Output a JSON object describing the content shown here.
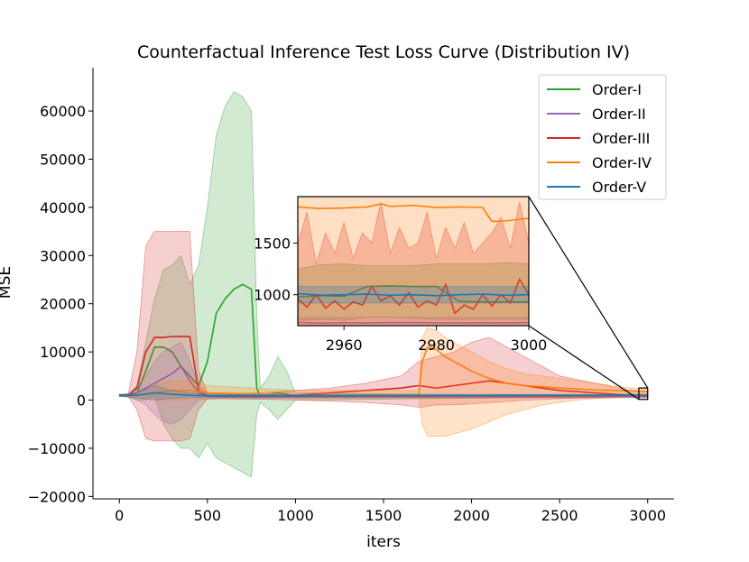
{
  "chart_data": {
    "type": "line",
    "title": "Counterfactual Inference Test Loss Curve (Distribution IV)",
    "xlabel": "iters",
    "ylabel": "MSE",
    "xlim": [
      -150,
      3150
    ],
    "ylim": [
      -20500,
      69000
    ],
    "xticks": [
      0,
      500,
      1000,
      1500,
      2000,
      2500,
      3000
    ],
    "xtick_labels": [
      "0",
      "500",
      "1000",
      "1500",
      "2000",
      "2500",
      "3000"
    ],
    "yticks": [
      -20000,
      -10000,
      0,
      10000,
      20000,
      30000,
      40000,
      50000,
      60000
    ],
    "ytick_labels": [
      "−20000",
      "−10000",
      "0",
      "10000",
      "20000",
      "30000",
      "40000",
      "50000",
      "60000"
    ],
    "grid": false,
    "legend_position": "top-right",
    "series": [
      {
        "name": "Order-I",
        "color": "#2ca02c",
        "x": [
          0,
          50,
          100,
          150,
          200,
          250,
          300,
          350,
          400,
          450,
          500,
          550,
          600,
          650,
          700,
          750,
          780,
          800,
          850,
          900,
          950,
          1000,
          1500,
          2000,
          2500,
          3000
        ],
        "mean": [
          1000,
          900,
          1500,
          6000,
          11000,
          11000,
          10000,
          7000,
          5000,
          3000,
          8000,
          18000,
          21000,
          23000,
          24000,
          23000,
          2500,
          800,
          1200,
          1500,
          1300,
          600,
          700,
          800,
          900,
          950
        ],
        "upper": [
          1200,
          1100,
          3000,
          12000,
          21000,
          27000,
          28000,
          30000,
          24000,
          28000,
          40000,
          55000,
          61000,
          64000,
          63000,
          60000,
          18000,
          2500,
          5000,
          9000,
          6000,
          1500,
          1300,
          1200,
          1200,
          1250
        ],
        "lower": [
          800,
          700,
          0,
          0,
          1000,
          -5000,
          -8000,
          -10000,
          -10000,
          -12000,
          -9000,
          -12000,
          -13000,
          -14000,
          -15000,
          -16000,
          -3000,
          -500,
          -2000,
          -4000,
          -2000,
          0,
          200,
          400,
          600,
          700
        ]
      },
      {
        "name": "Order-II",
        "color": "#9467bd",
        "x": [
          0,
          50,
          100,
          150,
          200,
          250,
          300,
          350,
          400,
          450,
          500,
          600,
          700,
          800,
          1000,
          1500,
          2000,
          2500,
          3000
        ],
        "mean": [
          1000,
          900,
          1500,
          2500,
          3500,
          4500,
          5500,
          7000,
          4000,
          1500,
          800,
          700,
          700,
          650,
          650,
          650,
          650,
          650,
          700
        ],
        "upper": [
          1200,
          1100,
          3000,
          5000,
          8000,
          10000,
          11000,
          12000,
          8000,
          3000,
          1500,
          1200,
          1100,
          1000,
          950,
          900,
          900,
          900,
          900
        ],
        "lower": [
          800,
          700,
          0,
          -1000,
          -3000,
          -4500,
          -5000,
          -4000,
          -2000,
          0,
          200,
          300,
          300,
          350,
          400,
          450,
          450,
          450,
          500
        ]
      },
      {
        "name": "Order-III",
        "color": "#d62728",
        "x": [
          0,
          50,
          100,
          150,
          200,
          250,
          300,
          350,
          400,
          450,
          500,
          600,
          800,
          1000,
          1200,
          1400,
          1600,
          1700,
          1800,
          1900,
          2000,
          2100,
          2200,
          2300,
          2400,
          2500,
          2700,
          2900,
          3000
        ],
        "mean": [
          1000,
          1000,
          2500,
          10000,
          13000,
          13000,
          13200,
          13200,
          13200,
          2000,
          900,
          800,
          800,
          1000,
          1500,
          2000,
          2500,
          3000,
          2500,
          3000,
          3500,
          4000,
          3500,
          3000,
          2500,
          2000,
          1500,
          1000,
          950
        ],
        "upper": [
          1200,
          1200,
          10000,
          32000,
          35000,
          35000,
          35000,
          35000,
          35000,
          6000,
          1500,
          1300,
          1500,
          2000,
          2500,
          3500,
          5000,
          8000,
          9000,
          10000,
          12000,
          13000,
          11000,
          9000,
          7000,
          5000,
          3500,
          2000,
          1900
        ],
        "lower": [
          800,
          800,
          -2000,
          -8000,
          -8500,
          -8500,
          -8500,
          -8500,
          -8000,
          -2000,
          300,
          300,
          200,
          0,
          -200,
          -500,
          -1000,
          -1500,
          -1000,
          -1000,
          -800,
          -500,
          -300,
          0,
          100,
          300,
          500,
          700,
          700
        ]
      },
      {
        "name": "Order-IV",
        "color": "#ff7f0e",
        "x": [
          0,
          100,
          200,
          300,
          400,
          500,
          1000,
          1500,
          1700,
          1720,
          1750,
          1800,
          1850,
          1900,
          1950,
          2000,
          2100,
          2200,
          2300,
          2400,
          2500,
          2600,
          2700,
          2800,
          2900,
          3000
        ],
        "mean": [
          1000,
          1000,
          1500,
          2000,
          2000,
          1500,
          1000,
          1000,
          1000,
          8000,
          11000,
          10500,
          9000,
          8000,
          7000,
          6000,
          4500,
          3500,
          3000,
          2800,
          2500,
          2300,
          2100,
          2000,
          1900,
          1800
        ],
        "upper": [
          1200,
          1500,
          3000,
          4000,
          4000,
          3000,
          2000,
          2000,
          2000,
          13000,
          15000,
          14500,
          13000,
          12000,
          11000,
          10000,
          8000,
          6500,
          5500,
          5000,
          4500,
          4000,
          3500,
          3000,
          2500,
          2300
        ],
        "lower": [
          800,
          500,
          0,
          0,
          0,
          500,
          500,
          500,
          500,
          -5000,
          -7500,
          -7500,
          -7500,
          -7000,
          -6500,
          -6000,
          -4500,
          -3000,
          -2000,
          -1000,
          -500,
          0,
          300,
          500,
          700,
          800
        ]
      },
      {
        "name": "Order-V",
        "color": "#1f77b4",
        "x": [
          0,
          100,
          200,
          300,
          400,
          500,
          1000,
          1500,
          2000,
          2500,
          3000
        ],
        "mean": [
          1000,
          1000,
          1500,
          1200,
          1000,
          900,
          900,
          950,
          950,
          980,
          1000
        ],
        "upper": [
          1200,
          1500,
          3000,
          2000,
          1500,
          1200,
          1100,
          1100,
          1100,
          1100,
          1100
        ],
        "lower": [
          800,
          500,
          0,
          400,
          500,
          600,
          700,
          800,
          850,
          870,
          900
        ]
      }
    ],
    "inset": {
      "xlim": [
        2950,
        3000
      ],
      "ylim": [
        700,
        1950
      ],
      "xticks": [
        2960,
        2980,
        3000
      ],
      "xtick_labels": [
        "2960",
        "2980",
        "3000"
      ],
      "yticks": [
        1000,
        1500
      ],
      "ytick_labels": [
        "1000",
        "1500"
      ],
      "series": [
        {
          "name": "Order-I",
          "color": "#2ca02c",
          "x": [
            2950,
            2955,
            2960,
            2965,
            2970,
            2975,
            2980,
            2985,
            2990,
            2995,
            3000
          ],
          "mean": [
            980,
            990,
            985,
            1080,
            1085,
            1080,
            1080,
            935,
            930,
            930,
            930
          ],
          "upper": [
            1250,
            1290,
            1300,
            1280,
            1280,
            1280,
            1300,
            1300,
            1300,
            1310,
            1300
          ],
          "lower": [
            750,
            760,
            750,
            780,
            780,
            770,
            760,
            760,
            760,
            760,
            760
          ]
        },
        {
          "name": "Order-II",
          "color": "#9467bd",
          "x": [
            2950,
            2955,
            2960,
            2965,
            2970,
            2975,
            2980,
            2985,
            2990,
            2995,
            3000
          ],
          "mean": [
            730,
            725,
            728,
            726,
            730,
            729,
            727,
            726,
            728,
            727,
            729
          ],
          "upper": [
            780,
            780,
            780,
            780,
            780,
            780,
            780,
            780,
            780,
            780,
            780
          ],
          "lower": [
            700,
            700,
            700,
            700,
            700,
            700,
            700,
            700,
            700,
            700,
            700
          ]
        },
        {
          "name": "Order-III",
          "color": "#d62728",
          "x": [
            2950,
            2952,
            2954,
            2956,
            2958,
            2960,
            2962,
            2964,
            2966,
            2968,
            2970,
            2972,
            2974,
            2976,
            2978,
            2980,
            2982,
            2984,
            2986,
            2988,
            2990,
            2992,
            2994,
            2996,
            2998,
            3000
          ],
          "mean": [
            960,
            880,
            1000,
            870,
            940,
            860,
            930,
            900,
            1080,
            940,
            990,
            900,
            1020,
            880,
            940,
            900,
            1100,
            820,
            900,
            860,
            1000,
            890,
            1000,
            920,
            1150,
            1000
          ],
          "upper": [
            1500,
            1800,
            1300,
            1600,
            1400,
            1700,
            1350,
            1600,
            1500,
            1900,
            1400,
            1650,
            1450,
            1500,
            1800,
            1350,
            1650,
            1450,
            1700,
            1400,
            1500,
            1600,
            1750,
            1450,
            1900,
            1500
          ],
          "lower": [
            700,
            700,
            700,
            700,
            700,
            700,
            700,
            700,
            700,
            700,
            700,
            700,
            700,
            700,
            700,
            700,
            700,
            700,
            700,
            700,
            700,
            700,
            700,
            700,
            700,
            700
          ]
        },
        {
          "name": "Order-IV",
          "color": "#ff7f0e",
          "x": [
            2950,
            2955,
            2960,
            2965,
            2968,
            2970,
            2975,
            2980,
            2985,
            2990,
            2992,
            2995,
            3000
          ],
          "mean": [
            1850,
            1835,
            1840,
            1850,
            1880,
            1855,
            1865,
            1845,
            1850,
            1845,
            1710,
            1715,
            1740
          ],
          "upper": [
            1950,
            1950,
            1950,
            1950,
            1950,
            1950,
            1950,
            1950,
            1950,
            1950,
            1950,
            1950,
            1950
          ],
          "lower": [
            700,
            700,
            700,
            700,
            700,
            700,
            700,
            700,
            700,
            700,
            700,
            700,
            700
          ]
        },
        {
          "name": "Order-V",
          "color": "#1f77b4",
          "x": [
            2950,
            2955,
            2960,
            2965,
            2970,
            2975,
            2980,
            2985,
            2990,
            2995,
            3000
          ],
          "mean": [
            1010,
            995,
            1000,
            1005,
            995,
            1000,
            990,
            1000,
            1005,
            995,
            1000
          ],
          "upper": [
            1080,
            1080,
            1080,
            1080,
            1080,
            1080,
            1080,
            1080,
            1080,
            1080,
            1080
          ],
          "lower": [
            920,
            920,
            920,
            920,
            920,
            920,
            920,
            920,
            920,
            920,
            920
          ]
        }
      ]
    }
  }
}
